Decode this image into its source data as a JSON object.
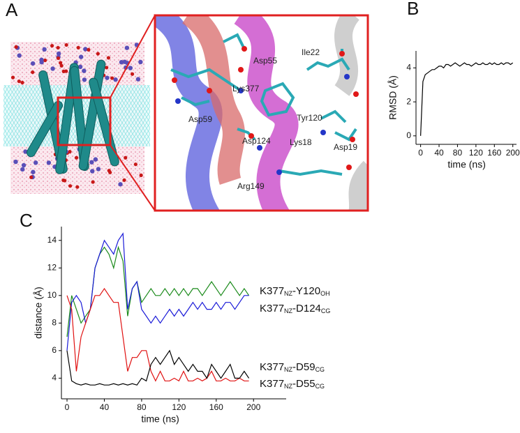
{
  "panels": [
    "A",
    "B",
    "C"
  ],
  "residues": [
    "Asp55",
    "Ile22",
    "Lys377",
    "Tyr120",
    "Asp59",
    "Lys18",
    "Asp19",
    "Asp124",
    "Arg149"
  ],
  "chart_data": [
    {
      "type": "line",
      "xlabel": "time (ns)",
      "ylabel": "RMSD (Å)",
      "x": [
        0,
        5,
        10,
        15,
        20,
        25,
        30,
        35,
        40,
        45,
        50,
        55,
        60,
        65,
        70,
        75,
        80,
        85,
        90,
        95,
        100,
        105,
        110,
        115,
        120,
        125,
        130,
        135,
        140,
        145,
        150,
        155,
        160,
        165,
        170,
        175,
        180,
        185,
        190,
        195,
        200
      ],
      "values": [
        0,
        3.2,
        3.6,
        3.7,
        3.8,
        3.9,
        3.9,
        4.0,
        4.1,
        4.1,
        4.0,
        4.2,
        4.2,
        4.1,
        4.2,
        4.3,
        4.2,
        4.1,
        4.2,
        4.3,
        4.2,
        4.2,
        4.1,
        4.2,
        4.3,
        4.2,
        4.2,
        4.3,
        4.2,
        4.2,
        4.3,
        4.2,
        4.3,
        4.2,
        4.2,
        4.3,
        4.2,
        4.3,
        4.3,
        4.2,
        4.3
      ],
      "color": "#000000",
      "xlim": [
        -10,
        208
      ],
      "ylim": [
        -0.5,
        5
      ],
      "xticks": [
        0,
        40,
        80,
        120,
        160,
        200
      ],
      "yticks": [
        0,
        2,
        4
      ]
    },
    {
      "type": "line",
      "xlabel": "time (ns)",
      "ylabel": "distance (Å)",
      "x": [
        0,
        5,
        10,
        15,
        20,
        25,
        30,
        35,
        40,
        45,
        50,
        55,
        60,
        65,
        70,
        75,
        80,
        85,
        90,
        95,
        100,
        105,
        110,
        115,
        120,
        125,
        130,
        135,
        140,
        145,
        150,
        155,
        160,
        165,
        170,
        175,
        180,
        185,
        190,
        195
      ],
      "series": [
        {
          "name": "K377NZ-Y120OH",
          "color": "#1a8a1a",
          "values": [
            7,
            10,
            9,
            8,
            8.5,
            9,
            12,
            13,
            13.5,
            13,
            12,
            13.5,
            12.5,
            8.5,
            10.5,
            11,
            9.5,
            10,
            10.5,
            10,
            10,
            10.5,
            10,
            10.5,
            10,
            10.5,
            10,
            10.5,
            10.5,
            10,
            10.5,
            11,
            10.5,
            10,
            10.5,
            11,
            10.5,
            10,
            10.5,
            10
          ]
        },
        {
          "name": "K377NZ-D124CG",
          "color": "#1a1ad8",
          "values": [
            6,
            9.5,
            10,
            9.5,
            8,
            9,
            12,
            13,
            14,
            13.5,
            13,
            14,
            14.5,
            9,
            10.5,
            11,
            9,
            8.5,
            8,
            8.5,
            8,
            8.5,
            9,
            8.5,
            9,
            8.5,
            9,
            9.5,
            9,
            9.5,
            9,
            9,
            9.5,
            9,
            9.5,
            9.5,
            9,
            9.5,
            10,
            10
          ]
        },
        {
          "name": "K377NZ-D59CG",
          "color": "#e01010",
          "values": [
            10,
            9,
            4.5,
            7,
            8,
            9,
            10,
            10,
            10.5,
            10,
            9.5,
            9.5,
            7,
            4.5,
            5.5,
            5.5,
            6,
            6,
            4.5,
            3.8,
            4.5,
            3.8,
            3.8,
            4,
            3.8,
            4.5,
            3.8,
            3.8,
            4,
            3.8,
            4,
            4.5,
            3.8,
            3.8,
            4,
            3.8,
            3.8,
            4,
            3.8,
            3.8
          ]
        },
        {
          "name": "K377NZ-D55CG",
          "color": "#000000",
          "values": [
            6,
            3.8,
            3.6,
            3.5,
            3.6,
            3.5,
            3.5,
            3.6,
            3.5,
            3.5,
            3.6,
            3.5,
            3.6,
            3.5,
            3.6,
            3.5,
            4,
            3.8,
            5,
            5.5,
            5,
            5.5,
            6,
            5,
            5.5,
            5,
            4.5,
            5,
            4.5,
            4.5,
            4,
            5,
            4.5,
            4,
            4.5,
            5,
            4,
            4,
            4.5,
            4
          ]
        }
      ],
      "xlim": [
        -6,
        235
      ],
      "ylim": [
        2.5,
        15
      ],
      "xticks": [
        0,
        40,
        80,
        120,
        160,
        200
      ],
      "yticks": [
        4,
        6,
        8,
        10,
        12,
        14
      ]
    }
  ]
}
